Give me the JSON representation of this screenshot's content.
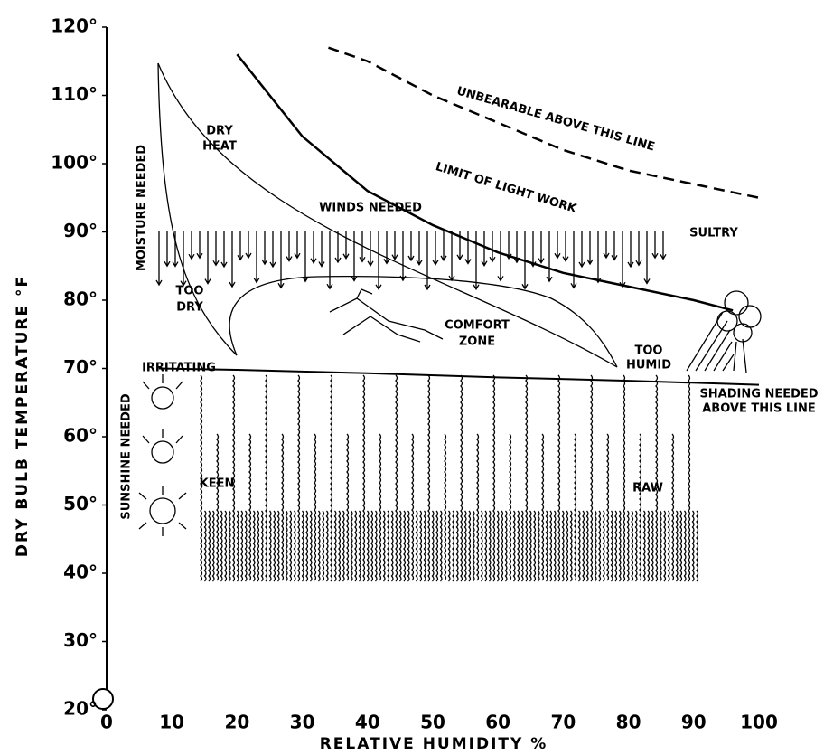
{
  "chart_data": {
    "type": "bioclimatic",
    "xlabel": "RELATIVE HUMIDITY %",
    "ylabel": "DRY BULB TEMPERATURE °F",
    "xlim": [
      0,
      100
    ],
    "ylim": [
      20,
      120
    ],
    "xticks": [
      0,
      10,
      20,
      30,
      40,
      50,
      60,
      70,
      80,
      90,
      100
    ],
    "yticks": [
      {
        "value": 20,
        "label": "20°"
      },
      {
        "value": 30,
        "label": "30°"
      },
      {
        "value": 40,
        "label": "40°"
      },
      {
        "value": 50,
        "label": "50°"
      },
      {
        "value": 60,
        "label": "60°"
      },
      {
        "value": 70,
        "label": "70°"
      },
      {
        "value": 80,
        "label": "80°"
      },
      {
        "value": 90,
        "label": "90°"
      },
      {
        "value": 100,
        "label": "100°"
      },
      {
        "value": 110,
        "label": "110°"
      },
      {
        "value": 120,
        "label": "120°"
      }
    ],
    "series": [
      {
        "x": [
          34,
          40,
          50,
          60,
          70,
          80,
          90,
          100
        ],
        "values": [
          117,
          115,
          110,
          106,
          102,
          99,
          97,
          95
        ],
        "dashed": true,
        "color": "#000000"
      },
      {
        "x": [
          20,
          30,
          40,
          50,
          60,
          70,
          80,
          90,
          96
        ],
        "values": [
          116,
          104,
          96,
          91,
          87,
          84,
          82,
          80,
          78.5
        ],
        "dashed": false,
        "color": "#000000"
      },
      {
        "x": [
          8,
          20,
          40,
          60,
          80,
          100
        ],
        "values": [
          70,
          69.8,
          69.3,
          68.7,
          68.2,
          67.6
        ],
        "dashed": false,
        "color": "#000000"
      }
    ],
    "annotations": [
      "UNBEARABLE ABOVE THIS LINE",
      "LIMIT OF LIGHT WORK",
      "DRY",
      "HEAT",
      "MOISTURE NEEDED",
      "WINDS NEEDED",
      "SULTRY",
      "TOO",
      "DRY",
      "COMFORT",
      "ZONE",
      "TOO",
      "HUMID",
      "IRRITATING",
      "SHADING NEEDED",
      "ABOVE THIS LINE",
      "SUNSHINE NEEDED",
      "KEEN",
      "RAW"
    ]
  }
}
